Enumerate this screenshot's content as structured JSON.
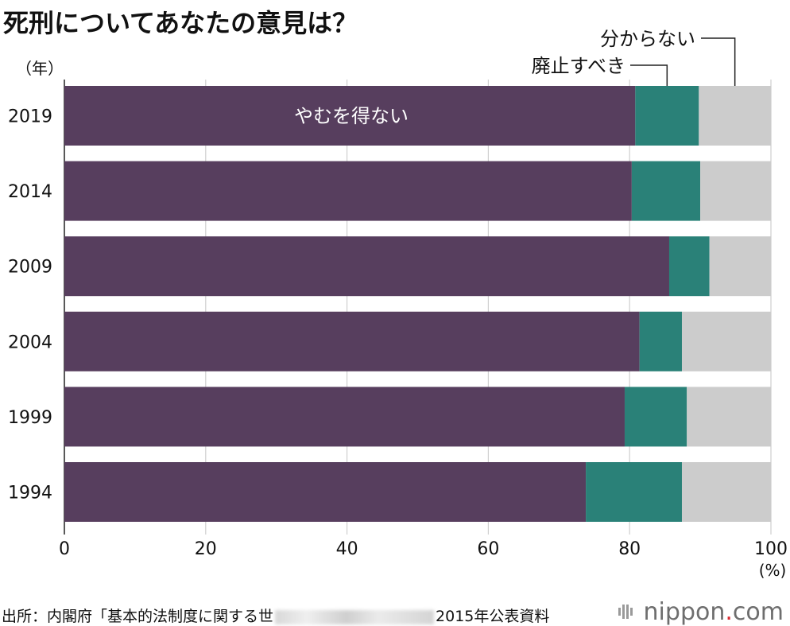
{
  "chart_data": {
    "type": "bar",
    "orientation": "horizontal",
    "stacked": true,
    "title": "死刑についてあなたの意見は？",
    "ylabel": "（年）",
    "xunit": "(%)",
    "categories": [
      "2019",
      "2014",
      "2009",
      "2004",
      "1999",
      "1994"
    ],
    "series": [
      {
        "name": "やむを得ない",
        "values": [
          80.8,
          80.3,
          85.6,
          81.4,
          79.3,
          73.8
        ],
        "color": "#573e5e"
      },
      {
        "name": "廃止すべき",
        "values": [
          9.0,
          9.7,
          5.7,
          6.0,
          8.8,
          13.6
        ],
        "color": "#2a8178"
      },
      {
        "name": "分からない",
        "values": [
          10.2,
          10.0,
          8.7,
          12.6,
          11.9,
          12.6
        ],
        "color": "#cccccc"
      }
    ],
    "xlim": [
      0,
      100
    ],
    "xticks": [
      "0",
      "20",
      "40",
      "60",
      "80",
      "100"
    ],
    "grid": true
  },
  "source": {
    "text_before": "出所：内閣府「基本的法制度に関する世",
    "text_after": "2015年公表資料"
  },
  "logo": {
    "name": "nippon",
    "dot": ".",
    "suffix": "com"
  }
}
